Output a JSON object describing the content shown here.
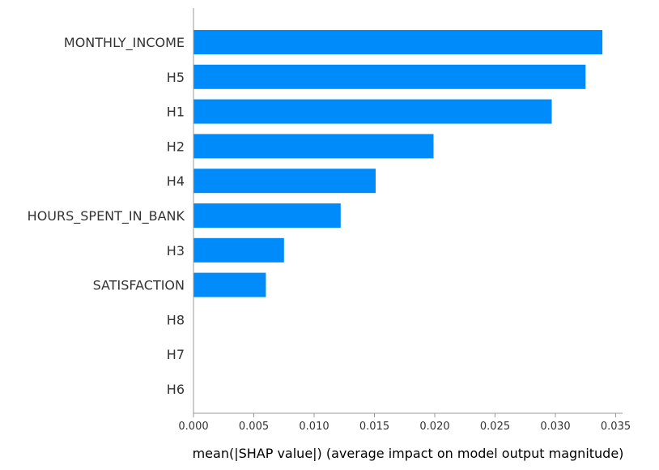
{
  "chart_data": {
    "type": "bar",
    "orientation": "horizontal",
    "categories": [
      "MONTHLY_INCOME",
      "H5",
      "H1",
      "H2",
      "H4",
      "HOURS_SPENT_IN_BANK",
      "H3",
      "SATISFACTION",
      "H8",
      "H7",
      "H6"
    ],
    "values": [
      0.0339,
      0.0325,
      0.0297,
      0.0199,
      0.0151,
      0.0122,
      0.0075,
      0.006,
      0.0,
      0.0,
      0.0
    ],
    "title": "",
    "xlabel": "mean(|SHAP value|) (average impact on model output magnitude)",
    "ylabel": "",
    "xlim": [
      0,
      0.0355
    ],
    "xticks": [
      "0.000",
      "0.005",
      "0.010",
      "0.015",
      "0.020",
      "0.025",
      "0.030",
      "0.035"
    ],
    "xtick_values": [
      0,
      0.005,
      0.01,
      0.015,
      0.02,
      0.025,
      0.03,
      0.035
    ],
    "grid": false,
    "legend": "none",
    "colors": {
      "bar": "#008bfb",
      "axis": "#999999",
      "text": "#333333"
    }
  }
}
